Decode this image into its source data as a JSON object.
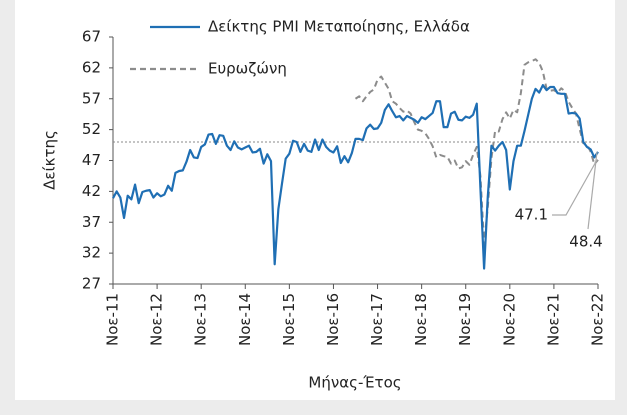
{
  "chart_data": {
    "type": "line",
    "y_label": "Δείκτης",
    "x_label": "Μήνας-Έτος",
    "categories": [
      "Νοε-11",
      null,
      null,
      null,
      null,
      null,
      null,
      null,
      null,
      null,
      null,
      null,
      "Νοε-12",
      null,
      null,
      null,
      null,
      null,
      null,
      null,
      null,
      null,
      null,
      null,
      "Νοε-13",
      null,
      null,
      null,
      null,
      null,
      null,
      null,
      null,
      null,
      null,
      null,
      "Νοε-14",
      null,
      null,
      null,
      null,
      null,
      null,
      null,
      null,
      null,
      null,
      null,
      "Νοε-15",
      null,
      null,
      null,
      null,
      null,
      null,
      null,
      null,
      null,
      null,
      null,
      "Νοε-16",
      null,
      null,
      null,
      null,
      null,
      null,
      null,
      null,
      null,
      null,
      null,
      "Νοε-17",
      null,
      null,
      null,
      null,
      null,
      null,
      null,
      null,
      null,
      null,
      null,
      "Νοε-18",
      null,
      null,
      null,
      null,
      null,
      null,
      null,
      null,
      null,
      null,
      null,
      "Νοε-19",
      null,
      null,
      null,
      null,
      null,
      null,
      null,
      null,
      null,
      null,
      null,
      "Νοε-20",
      null,
      null,
      null,
      null,
      null,
      null,
      null,
      null,
      null,
      null,
      null,
      "Νοε-21",
      null,
      null,
      null,
      null,
      null,
      null,
      null,
      null,
      null,
      null,
      null,
      "Νοε-22"
    ],
    "series": [
      {
        "name": "Δείκτης PMI Μεταποίησης, Ελλάδα",
        "color": "#1f6fb4",
        "dash": false,
        "values": [
          40.9,
          42.0,
          41.0,
          37.7,
          41.3,
          40.7,
          43.1,
          40.1,
          41.9,
          42.1,
          42.2,
          41.0,
          41.7,
          41.2,
          41.5,
          42.9,
          42.1,
          45.0,
          45.3,
          45.4,
          46.8,
          48.7,
          47.5,
          47.4,
          49.2,
          49.6,
          51.2,
          51.3,
          49.7,
          51.1,
          51.0,
          49.4,
          48.7,
          50.1,
          49.1,
          48.8,
          49.1,
          49.4,
          48.3,
          48.4,
          48.9,
          46.5,
          48.0,
          46.9,
          30.2,
          39.1,
          43.3,
          47.3,
          48.1,
          50.2,
          50.0,
          48.4,
          49.7,
          48.6,
          48.4,
          50.4,
          48.7,
          50.4,
          49.2,
          48.6,
          48.3,
          49.3,
          46.6,
          47.7,
          46.7,
          48.2,
          50.5,
          50.5,
          50.3,
          52.2,
          52.8,
          52.1,
          52.2,
          53.1,
          55.2,
          56.1,
          55.0,
          54.0,
          54.2,
          53.5,
          54.2,
          53.9,
          53.6,
          53.1,
          54.0,
          53.7,
          54.2,
          54.7,
          56.6,
          56.6,
          52.4,
          52.4,
          54.6,
          54.9,
          53.6,
          53.5,
          54.1,
          53.9,
          54.4,
          56.2,
          42.5,
          29.5,
          41.1,
          49.4,
          48.6,
          49.4,
          50.0,
          48.7,
          42.3,
          46.9,
          49.4,
          49.4,
          51.8,
          54.4,
          57.0,
          58.6,
          58.0,
          59.2,
          58.4,
          58.9,
          58.9,
          57.9,
          57.8,
          57.8,
          54.6,
          54.7,
          54.6,
          53.8,
          50.0,
          49.2,
          48.8,
          47.5,
          48.4
        ]
      },
      {
        "name": "Ευρωζώνη",
        "color": "#8c8c8c",
        "dash": true,
        "values": [
          null,
          null,
          null,
          null,
          null,
          null,
          null,
          null,
          null,
          null,
          null,
          null,
          null,
          null,
          null,
          null,
          null,
          null,
          null,
          null,
          null,
          null,
          null,
          null,
          null,
          null,
          null,
          null,
          null,
          null,
          null,
          null,
          null,
          null,
          null,
          null,
          null,
          null,
          null,
          null,
          null,
          null,
          null,
          null,
          null,
          null,
          null,
          null,
          null,
          null,
          null,
          null,
          null,
          null,
          null,
          null,
          null,
          null,
          null,
          null,
          null,
          null,
          null,
          null,
          null,
          null,
          57.0,
          57.4,
          56.6,
          57.4,
          58.1,
          58.5,
          60.1,
          60.6,
          59.6,
          58.6,
          56.6,
          56.2,
          55.5,
          54.9,
          55.1,
          54.6,
          53.2,
          52.0,
          51.8,
          51.4,
          50.5,
          49.3,
          47.5,
          47.9,
          47.7,
          47.6,
          46.5,
          47.0,
          45.7,
          45.9,
          46.9,
          46.3,
          47.9,
          49.2,
          44.5,
          33.4,
          39.4,
          47.4,
          51.8,
          51.7,
          53.7,
          54.8,
          53.8,
          55.2,
          54.8,
          57.9,
          62.5,
          62.9,
          63.1,
          63.4,
          62.8,
          61.4,
          58.6,
          58.3,
          58.4,
          58.0,
          58.7,
          58.2,
          56.5,
          55.5,
          54.6,
          52.1,
          49.8,
          49.6,
          48.4,
          46.4,
          47.1
        ]
      }
    ],
    "ylim": [
      27,
      67
    ],
    "yticks": [
      27,
      32,
      37,
      42,
      47,
      52,
      57,
      62,
      67
    ],
    "reference_line": 50,
    "annotations": [
      "47.1",
      "48.4"
    ]
  }
}
